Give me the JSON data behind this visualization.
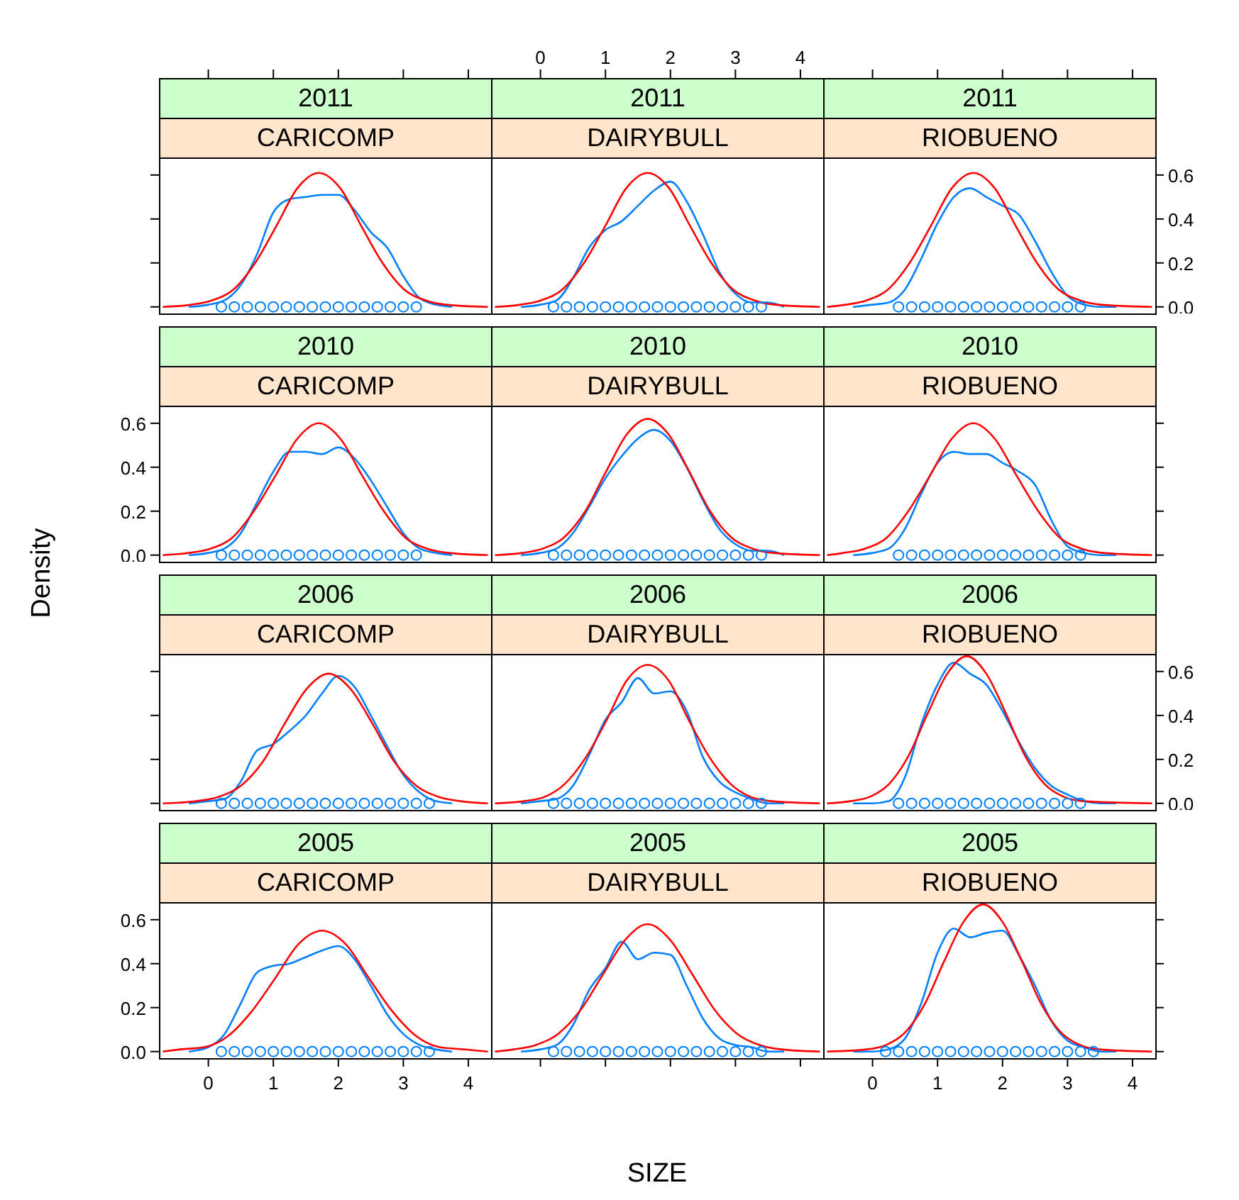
{
  "chart_data": [
    {
      "type": "line",
      "title": "2011",
      "subtitle": "CARICOMP",
      "xlim": [
        -0.76,
        4.35
      ],
      "ylim": [
        -0.03,
        0.68
      ],
      "xticks": [
        {
          "value": 0,
          "label": null
        },
        {
          "value": 1,
          "label": null
        },
        {
          "value": 2,
          "label": null
        },
        {
          "value": 3,
          "label": null
        },
        {
          "value": 4,
          "label": null
        }
      ],
      "yticks": [
        {
          "value": 0,
          "label": null
        },
        {
          "value": 0.2,
          "label": null
        },
        {
          "value": 0.4,
          "label": null
        },
        {
          "value": 0.6,
          "label": null
        }
      ],
      "tick_labels": false,
      "marker": "none",
      "series": [
        {
          "type": "line",
          "color": "#0080ff",
          "x": [
            -0.3,
            0,
            0.25,
            0.5,
            0.75,
            1,
            1.25,
            1.5,
            1.75,
            2,
            2.25,
            2.5,
            2.75,
            3,
            3.25,
            3.5,
            3.75
          ],
          "values": [
            0,
            0.01,
            0.03,
            0.1,
            0.24,
            0.43,
            0.49,
            0.5,
            0.51,
            0.51,
            0.44,
            0.34,
            0.27,
            0.14,
            0.04,
            0.01,
            0
          ]
        },
        {
          "type": "line",
          "color": "#ff0000",
          "x": [
            -0.7,
            -0.26,
            0.06,
            0.39,
            0.72,
            1.05,
            1.37,
            1.7,
            2.03,
            2.35,
            2.68,
            3.01,
            3.34,
            3.66,
            4.3
          ],
          "values": [
            0,
            0.01,
            0.03,
            0.08,
            0.2,
            0.37,
            0.54,
            0.61,
            0.54,
            0.37,
            0.2,
            0.08,
            0.03,
            0.01,
            0
          ]
        },
        {
          "type": "scatter",
          "color": "#0080ff",
          "marker": "circle",
          "x": [
            0.2,
            0.4,
            0.6,
            0.8,
            1,
            1.2,
            1.4,
            1.6,
            1.8,
            2,
            2.2,
            2.4,
            2.6,
            2.8,
            3,
            3.2
          ],
          "values": [
            0,
            0,
            0,
            0,
            0,
            0,
            0,
            0,
            0,
            0,
            0,
            0,
            0,
            0,
            0,
            0
          ]
        }
      ]
    },
    {
      "type": "line",
      "title": "2011",
      "subtitle": "DAIRYBULL",
      "xlim": [
        -0.76,
        4.35
      ],
      "ylim": [
        -0.03,
        0.68
      ],
      "xticks": [
        0,
        1,
        2,
        3,
        4
      ],
      "tick_labels": "x",
      "marker": "none",
      "series": [
        {
          "type": "line",
          "color": "#0080ff",
          "x": [
            -0.3,
            0,
            0.25,
            0.5,
            0.75,
            1,
            1.25,
            1.5,
            1.75,
            2,
            2.25,
            2.5,
            2.75,
            3,
            3.25,
            3.5,
            3.75
          ],
          "values": [
            0,
            0.01,
            0.03,
            0.13,
            0.27,
            0.35,
            0.39,
            0.46,
            0.53,
            0.57,
            0.48,
            0.33,
            0.16,
            0.06,
            0.02,
            0.02,
            0
          ]
        },
        {
          "type": "line",
          "color": "#ff0000",
          "x": [
            -0.7,
            -0.31,
            0.01,
            0.34,
            0.67,
            1,
            1.32,
            1.65,
            1.98,
            2.3,
            2.63,
            2.96,
            3.29,
            3.61,
            4.3
          ],
          "values": [
            0,
            0.01,
            0.03,
            0.08,
            0.2,
            0.37,
            0.54,
            0.61,
            0.54,
            0.37,
            0.2,
            0.08,
            0.03,
            0.01,
            0
          ]
        },
        {
          "type": "scatter",
          "color": "#0080ff",
          "marker": "circle",
          "x": [
            0.2,
            0.4,
            0.6,
            0.8,
            1,
            1.2,
            1.4,
            1.6,
            1.8,
            2,
            2.2,
            2.4,
            2.6,
            2.8,
            3,
            3.2,
            3.4
          ],
          "values": [
            0,
            0,
            0,
            0,
            0,
            0,
            0,
            0,
            0,
            0,
            0,
            0,
            0,
            0,
            0,
            0,
            0
          ]
        }
      ]
    },
    {
      "type": "line",
      "title": "2011",
      "subtitle": "RIOBUENO",
      "xlim": [
        -0.76,
        4.35
      ],
      "ylim": [
        -0.03,
        0.68
      ],
      "xticks": [
        {
          "value": 0,
          "label": null
        },
        {
          "value": 1,
          "label": null
        },
        {
          "value": 2,
          "label": null
        },
        {
          "value": 3,
          "label": null
        },
        {
          "value": 4,
          "label": null
        }
      ],
      "yticks": [
        {
          "value": 0,
          "label": "0.0"
        },
        {
          "value": 0.2,
          "label": "0.2"
        },
        {
          "value": 0.4,
          "label": "0.4"
        },
        {
          "value": 0.6,
          "label": "0.6"
        }
      ],
      "tick_labels": "y",
      "marker": "none",
      "series": [
        {
          "type": "line",
          "color": "#0080ff",
          "x": [
            -0.3,
            0,
            0.25,
            0.5,
            0.75,
            1,
            1.25,
            1.5,
            1.75,
            2,
            2.25,
            2.5,
            2.75,
            3,
            3.25,
            3.5,
            3.75
          ],
          "values": [
            0,
            0.01,
            0.02,
            0.08,
            0.22,
            0.38,
            0.5,
            0.54,
            0.5,
            0.46,
            0.42,
            0.3,
            0.16,
            0.05,
            0.01,
            0,
            0
          ]
        },
        {
          "type": "line",
          "color": "#ff0000",
          "x": [
            -0.7,
            -0.41,
            -0.09,
            0.24,
            0.57,
            0.9,
            1.22,
            1.55,
            1.88,
            2.2,
            2.53,
            2.86,
            3.19,
            3.51,
            4.3
          ],
          "values": [
            0,
            0.01,
            0.03,
            0.08,
            0.2,
            0.37,
            0.54,
            0.61,
            0.54,
            0.37,
            0.2,
            0.08,
            0.03,
            0.01,
            0
          ]
        },
        {
          "type": "scatter",
          "color": "#0080ff",
          "marker": "circle",
          "x": [
            0.4,
            0.6,
            0.8,
            1,
            1.2,
            1.4,
            1.6,
            1.8,
            2,
            2.2,
            2.4,
            2.6,
            2.8,
            3,
            3.2
          ],
          "values": [
            0,
            0,
            0,
            0,
            0,
            0,
            0,
            0,
            0,
            0,
            0,
            0,
            0,
            0,
            0
          ]
        }
      ]
    },
    {
      "type": "line",
      "title": "2010",
      "subtitle": "CARICOMP",
      "xlim": [
        -0.76,
        4.35
      ],
      "ylim": [
        -0.03,
        0.68
      ],
      "yticks": [
        {
          "value": 0,
          "label": "0.0"
        },
        {
          "value": 0.2,
          "label": "0.2"
        },
        {
          "value": 0.4,
          "label": "0.4"
        },
        {
          "value": 0.6,
          "label": "0.6"
        }
      ],
      "tick_labels": "y",
      "marker": "none",
      "ylabel": "Density",
      "series": [
        {
          "type": "line",
          "color": "#0080ff",
          "x": [
            -0.3,
            0,
            0.25,
            0.5,
            0.75,
            1,
            1.25,
            1.5,
            1.75,
            2,
            2.25,
            2.5,
            2.75,
            3,
            3.25,
            3.5,
            3.75
          ],
          "values": [
            0,
            0.01,
            0.03,
            0.1,
            0.24,
            0.38,
            0.47,
            0.47,
            0.46,
            0.49,
            0.44,
            0.34,
            0.22,
            0.1,
            0.03,
            0.01,
            0
          ]
        },
        {
          "type": "line",
          "color": "#ff0000",
          "x": [
            -0.7,
            -0.3,
            0.04,
            0.37,
            0.7,
            1.03,
            1.37,
            1.7,
            2.03,
            2.37,
            2.7,
            3.03,
            3.36,
            3.7,
            4.3
          ],
          "values": [
            0,
            0.01,
            0.03,
            0.08,
            0.2,
            0.36,
            0.53,
            0.6,
            0.53,
            0.36,
            0.2,
            0.08,
            0.03,
            0.01,
            0
          ]
        },
        {
          "type": "scatter",
          "color": "#0080ff",
          "marker": "circle",
          "x": [
            0.2,
            0.4,
            0.6,
            0.8,
            1,
            1.2,
            1.4,
            1.6,
            1.8,
            2,
            2.2,
            2.4,
            2.6,
            2.8,
            3,
            3.2
          ],
          "values": [
            0,
            0,
            0,
            0,
            0,
            0,
            0,
            0,
            0,
            0,
            0,
            0,
            0,
            0,
            0,
            0
          ]
        }
      ]
    },
    {
      "type": "line",
      "title": "2010",
      "subtitle": "DAIRYBULL",
      "xlim": [
        -0.76,
        4.35
      ],
      "ylim": [
        -0.03,
        0.68
      ],
      "tick_labels": false,
      "marker": "none",
      "series": [
        {
          "type": "line",
          "color": "#0080ff",
          "x": [
            -0.3,
            0,
            0.25,
            0.5,
            0.75,
            1,
            1.25,
            1.5,
            1.75,
            2,
            2.25,
            2.5,
            2.75,
            3,
            3.25,
            3.5,
            3.75
          ],
          "values": [
            0,
            0.01,
            0.03,
            0.1,
            0.22,
            0.35,
            0.45,
            0.53,
            0.57,
            0.52,
            0.4,
            0.25,
            0.12,
            0.05,
            0.02,
            0.02,
            0
          ]
        },
        {
          "type": "line",
          "color": "#ff0000",
          "x": [
            -0.7,
            -0.28,
            0.04,
            0.36,
            0.69,
            1.01,
            1.33,
            1.65,
            1.97,
            2.29,
            2.61,
            2.94,
            3.26,
            3.58,
            4.3
          ],
          "values": [
            0,
            0.01,
            0.03,
            0.08,
            0.2,
            0.38,
            0.55,
            0.62,
            0.55,
            0.38,
            0.2,
            0.08,
            0.03,
            0.01,
            0
          ]
        },
        {
          "type": "scatter",
          "color": "#0080ff",
          "marker": "circle",
          "x": [
            0.2,
            0.4,
            0.6,
            0.8,
            1,
            1.2,
            1.4,
            1.6,
            1.8,
            2,
            2.2,
            2.4,
            2.6,
            2.8,
            3,
            3.2,
            3.4
          ],
          "values": [
            0,
            0,
            0,
            0,
            0,
            0,
            0,
            0,
            0,
            0,
            0,
            0,
            0,
            0,
            0,
            0,
            0
          ]
        }
      ]
    },
    {
      "type": "line",
      "title": "2010",
      "subtitle": "RIOBUENO",
      "xlim": [
        -0.76,
        4.35
      ],
      "ylim": [
        -0.03,
        0.68
      ],
      "yticks": [
        {
          "value": 0,
          "label": null
        },
        {
          "value": 0.2,
          "label": null
        },
        {
          "value": 0.4,
          "label": null
        },
        {
          "value": 0.6,
          "label": null
        }
      ],
      "tick_labels": false,
      "marker": "none",
      "series": [
        {
          "type": "line",
          "color": "#0080ff",
          "x": [
            -0.3,
            0,
            0.25,
            0.5,
            0.75,
            1,
            1.25,
            1.5,
            1.75,
            2,
            2.25,
            2.5,
            2.75,
            3,
            3.25,
            3.5,
            3.75
          ],
          "values": [
            0,
            0.01,
            0.03,
            0.12,
            0.28,
            0.42,
            0.47,
            0.46,
            0.46,
            0.42,
            0.38,
            0.32,
            0.16,
            0.04,
            0.01,
            0,
            0
          ]
        },
        {
          "type": "line",
          "color": "#ff0000",
          "x": [
            -0.7,
            -0.45,
            -0.11,
            0.22,
            0.55,
            0.88,
            1.22,
            1.55,
            1.88,
            2.22,
            2.55,
            2.88,
            3.21,
            3.55,
            4.3
          ],
          "values": [
            0,
            0.01,
            0.03,
            0.08,
            0.2,
            0.36,
            0.53,
            0.6,
            0.53,
            0.36,
            0.2,
            0.08,
            0.03,
            0.01,
            0
          ]
        },
        {
          "type": "scatter",
          "color": "#0080ff",
          "marker": "circle",
          "x": [
            0.4,
            0.6,
            0.8,
            1,
            1.2,
            1.4,
            1.6,
            1.8,
            2,
            2.2,
            2.4,
            2.6,
            2.8,
            3,
            3.2
          ],
          "values": [
            0,
            0,
            0,
            0,
            0,
            0,
            0,
            0,
            0,
            0,
            0,
            0,
            0,
            0,
            0
          ]
        }
      ]
    },
    {
      "type": "line",
      "title": "2006",
      "subtitle": "CARICOMP",
      "xlim": [
        -0.76,
        4.35
      ],
      "ylim": [
        -0.03,
        0.68
      ],
      "yticks": [
        {
          "value": 0,
          "label": null
        },
        {
          "value": 0.2,
          "label": null
        },
        {
          "value": 0.4,
          "label": null
        },
        {
          "value": 0.6,
          "label": null
        }
      ],
      "tick_labels": false,
      "marker": "none",
      "series": [
        {
          "type": "line",
          "color": "#0080ff",
          "x": [
            -0.3,
            0,
            0.25,
            0.5,
            0.75,
            1,
            1.25,
            1.5,
            1.75,
            2,
            2.25,
            2.5,
            2.75,
            3,
            3.25,
            3.5,
            3.75
          ],
          "values": [
            0,
            0.01,
            0.02,
            0.1,
            0.24,
            0.27,
            0.33,
            0.4,
            0.5,
            0.58,
            0.53,
            0.4,
            0.26,
            0.13,
            0.05,
            0.01,
            0
          ]
        },
        {
          "type": "line",
          "color": "#ff0000",
          "x": [
            -0.7,
            -0.18,
            0.16,
            0.5,
            0.84,
            1.17,
            1.51,
            1.85,
            2.19,
            2.53,
            2.86,
            3.2,
            3.54,
            3.88,
            4.3
          ],
          "values": [
            0,
            0.01,
            0.03,
            0.08,
            0.19,
            0.36,
            0.52,
            0.59,
            0.52,
            0.36,
            0.19,
            0.08,
            0.03,
            0.01,
            0
          ]
        },
        {
          "type": "scatter",
          "color": "#0080ff",
          "marker": "circle",
          "x": [
            0.2,
            0.4,
            0.6,
            0.8,
            1,
            1.2,
            1.4,
            1.6,
            1.8,
            2,
            2.2,
            2.4,
            2.6,
            2.8,
            3,
            3.2,
            3.4
          ],
          "values": [
            0,
            0,
            0,
            0,
            0,
            0,
            0,
            0,
            0,
            0,
            0,
            0,
            0,
            0,
            0,
            0,
            0
          ]
        }
      ]
    },
    {
      "type": "line",
      "title": "2006",
      "subtitle": "DAIRYBULL",
      "xlim": [
        -0.76,
        4.35
      ],
      "ylim": [
        -0.03,
        0.68
      ],
      "tick_labels": false,
      "marker": "none",
      "series": [
        {
          "type": "line",
          "color": "#0080ff",
          "x": [
            -0.3,
            0,
            0.25,
            0.5,
            0.75,
            1,
            1.25,
            1.5,
            1.75,
            2,
            2.25,
            2.5,
            2.75,
            3,
            3.25,
            3.5,
            3.75
          ],
          "values": [
            0,
            0.01,
            0.02,
            0.08,
            0.22,
            0.38,
            0.46,
            0.57,
            0.5,
            0.51,
            0.42,
            0.21,
            0.1,
            0.05,
            0.02,
            0,
            0
          ]
        },
        {
          "type": "line",
          "color": "#ff0000",
          "x": [
            -0.7,
            -0.25,
            0.07,
            0.38,
            0.7,
            1.02,
            1.33,
            1.65,
            1.97,
            2.28,
            2.6,
            2.92,
            3.23,
            3.55,
            4.3
          ],
          "values": [
            0,
            0.01,
            0.03,
            0.09,
            0.21,
            0.38,
            0.56,
            0.63,
            0.56,
            0.38,
            0.21,
            0.09,
            0.03,
            0.01,
            0
          ]
        },
        {
          "type": "scatter",
          "color": "#0080ff",
          "marker": "circle",
          "x": [
            0.2,
            0.4,
            0.6,
            0.8,
            1,
            1.2,
            1.4,
            1.6,
            1.8,
            2,
            2.2,
            2.4,
            2.6,
            2.8,
            3,
            3.2,
            3.4
          ],
          "values": [
            0,
            0,
            0,
            0,
            0,
            0,
            0,
            0,
            0,
            0,
            0,
            0,
            0,
            0,
            0,
            0,
            0
          ]
        }
      ]
    },
    {
      "type": "line",
      "title": "2006",
      "subtitle": "RIOBUENO",
      "xlim": [
        -0.76,
        4.35
      ],
      "ylim": [
        -0.03,
        0.68
      ],
      "yticks": [
        {
          "value": 0,
          "label": "0.0"
        },
        {
          "value": 0.2,
          "label": "0.2"
        },
        {
          "value": 0.4,
          "label": "0.4"
        },
        {
          "value": 0.6,
          "label": "0.6"
        }
      ],
      "tick_labels": "y",
      "marker": "none",
      "series": [
        {
          "type": "line",
          "color": "#0080ff",
          "x": [
            -0.3,
            0,
            0.25,
            0.5,
            0.75,
            1,
            1.25,
            1.5,
            1.75,
            2,
            2.25,
            2.5,
            2.75,
            3,
            3.25,
            3.5,
            3.75
          ],
          "values": [
            0,
            0,
            0.01,
            0.12,
            0.36,
            0.54,
            0.64,
            0.59,
            0.54,
            0.42,
            0.28,
            0.16,
            0.08,
            0.04,
            0.01,
            0,
            0
          ]
        },
        {
          "type": "line",
          "color": "#ff0000",
          "x": [
            -0.7,
            -0.34,
            -0.04,
            0.26,
            0.56,
            0.85,
            1.15,
            1.45,
            1.75,
            2.05,
            2.34,
            2.64,
            2.94,
            3.24,
            4.3
          ],
          "values": [
            0,
            0.01,
            0.03,
            0.09,
            0.22,
            0.41,
            0.59,
            0.67,
            0.59,
            0.41,
            0.22,
            0.09,
            0.03,
            0.01,
            0
          ]
        },
        {
          "type": "scatter",
          "color": "#0080ff",
          "marker": "circle",
          "x": [
            0.4,
            0.6,
            0.8,
            1,
            1.2,
            1.4,
            1.6,
            1.8,
            2,
            2.2,
            2.4,
            2.6,
            2.8,
            3,
            3.2
          ],
          "values": [
            0,
            0,
            0,
            0,
            0,
            0,
            0,
            0,
            0,
            0,
            0,
            0,
            0,
            0,
            0
          ]
        }
      ]
    },
    {
      "type": "line",
      "title": "2005",
      "subtitle": "CARICOMP",
      "xlim": [
        -0.76,
        4.35
      ],
      "ylim": [
        -0.03,
        0.68
      ],
      "xticks": [
        0,
        1,
        2,
        3,
        4
      ],
      "yticks": [
        {
          "value": 0,
          "label": "0.0"
        },
        {
          "value": 0.2,
          "label": "0.2"
        },
        {
          "value": 0.4,
          "label": "0.4"
        },
        {
          "value": 0.6,
          "label": "0.6"
        }
      ],
      "marker": "none",
      "xlabel": "SIZE",
      "series": [
        {
          "type": "line",
          "color": "#0080ff",
          "x": [
            -0.3,
            0,
            0.25,
            0.5,
            0.75,
            1,
            1.25,
            1.5,
            1.75,
            2,
            2.25,
            2.5,
            2.75,
            3,
            3.25,
            3.5,
            3.75
          ],
          "values": [
            0,
            0.02,
            0.08,
            0.22,
            0.36,
            0.39,
            0.4,
            0.43,
            0.46,
            0.48,
            0.42,
            0.3,
            0.17,
            0.08,
            0.03,
            0.01,
            0
          ]
        },
        {
          "type": "line",
          "color": "#ff0000",
          "x": [
            -0.7,
            -0.43,
            -0.06,
            0.3,
            0.66,
            1.02,
            1.39,
            1.75,
            2.11,
            2.48,
            2.84,
            3.2,
            3.56,
            3.93,
            4.3
          ],
          "values": [
            0,
            0.01,
            0.02,
            0.07,
            0.18,
            0.33,
            0.49,
            0.55,
            0.49,
            0.33,
            0.18,
            0.07,
            0.02,
            0.01,
            0
          ]
        },
        {
          "type": "scatter",
          "color": "#0080ff",
          "marker": "circle",
          "x": [
            0.2,
            0.4,
            0.6,
            0.8,
            1,
            1.2,
            1.4,
            1.6,
            1.8,
            2,
            2.2,
            2.4,
            2.6,
            2.8,
            3,
            3.2,
            3.4
          ],
          "values": [
            0,
            0,
            0,
            0,
            0,
            0,
            0,
            0,
            0,
            0,
            0,
            0,
            0,
            0,
            0,
            0,
            0
          ]
        }
      ]
    },
    {
      "type": "line",
      "title": "2005",
      "subtitle": "DAIRYBULL",
      "xlim": [
        -0.76,
        4.35
      ],
      "ylim": [
        -0.03,
        0.68
      ],
      "xticks": [
        {
          "value": 0,
          "label": null
        },
        {
          "value": 1,
          "label": null
        },
        {
          "value": 2,
          "label": null
        },
        {
          "value": 3,
          "label": null
        },
        {
          "value": 4,
          "label": null
        }
      ],
      "tick_labels": false,
      "marker": "none",
      "series": [
        {
          "type": "line",
          "color": "#0080ff",
          "x": [
            -0.3,
            0,
            0.25,
            0.5,
            0.75,
            1,
            1.25,
            1.5,
            1.75,
            2,
            2.25,
            2.5,
            2.75,
            3,
            3.25,
            3.5,
            3.75
          ],
          "values": [
            0,
            0.01,
            0.03,
            0.12,
            0.28,
            0.38,
            0.5,
            0.42,
            0.45,
            0.44,
            0.3,
            0.15,
            0.06,
            0.03,
            0.02,
            0,
            0
          ]
        },
        {
          "type": "line",
          "color": "#ff0000",
          "x": [
            -0.7,
            -0.41,
            -0.07,
            0.27,
            0.62,
            0.96,
            1.31,
            1.65,
            1.99,
            2.34,
            2.68,
            3.03,
            3.37,
            3.71,
            4.3
          ],
          "values": [
            0,
            0.01,
            0.03,
            0.08,
            0.19,
            0.35,
            0.51,
            0.58,
            0.51,
            0.35,
            0.19,
            0.08,
            0.03,
            0.01,
            0
          ]
        },
        {
          "type": "scatter",
          "color": "#0080ff",
          "marker": "circle",
          "x": [
            0.2,
            0.4,
            0.6,
            0.8,
            1,
            1.2,
            1.4,
            1.6,
            1.8,
            2,
            2.2,
            2.4,
            2.6,
            2.8,
            3,
            3.2,
            3.4
          ],
          "values": [
            0,
            0,
            0,
            0,
            0,
            0,
            0,
            0,
            0,
            0,
            0,
            0,
            0,
            0,
            0,
            0,
            0
          ]
        }
      ]
    },
    {
      "type": "line",
      "title": "2005",
      "subtitle": "RIOBUENO",
      "xlim": [
        -0.76,
        4.35
      ],
      "ylim": [
        -0.03,
        0.68
      ],
      "xticks": [
        0,
        1,
        2,
        3,
        4
      ],
      "yticks": [
        {
          "value": 0,
          "label": null
        },
        {
          "value": 0.2,
          "label": null
        },
        {
          "value": 0.4,
          "label": null
        },
        {
          "value": 0.6,
          "label": null
        }
      ],
      "tick_labels": "x",
      "marker": "none",
      "series": [
        {
          "type": "line",
          "color": "#0080ff",
          "x": [
            -0.3,
            0,
            0.25,
            0.5,
            0.75,
            1,
            1.25,
            1.5,
            1.75,
            2,
            2.25,
            2.5,
            2.75,
            3,
            3.25,
            3.5,
            3.75
          ],
          "values": [
            0,
            0,
            0.01,
            0.06,
            0.22,
            0.45,
            0.56,
            0.52,
            0.54,
            0.55,
            0.44,
            0.3,
            0.14,
            0.05,
            0.02,
            0,
            0
          ]
        },
        {
          "type": "line",
          "color": "#ff0000",
          "x": [
            -0.7,
            -0.09,
            0.21,
            0.51,
            0.81,
            1.1,
            1.4,
            1.7,
            2,
            2.3,
            2.59,
            2.89,
            3.19,
            3.49,
            4.3
          ],
          "values": [
            0,
            0.01,
            0.03,
            0.09,
            0.22,
            0.41,
            0.59,
            0.67,
            0.59,
            0.41,
            0.22,
            0.09,
            0.03,
            0.01,
            0
          ]
        },
        {
          "type": "scatter",
          "color": "#0080ff",
          "marker": "circle",
          "x": [
            0.2,
            0.4,
            0.6,
            0.8,
            1,
            1.2,
            1.4,
            1.6,
            1.8,
            2,
            2.2,
            2.4,
            2.6,
            2.8,
            3,
            3.2,
            3.4
          ],
          "values": [
            0,
            0,
            0,
            0,
            0,
            0,
            0,
            0,
            0,
            0,
            0,
            0,
            0,
            0,
            0,
            0,
            0
          ]
        }
      ]
    }
  ]
}
